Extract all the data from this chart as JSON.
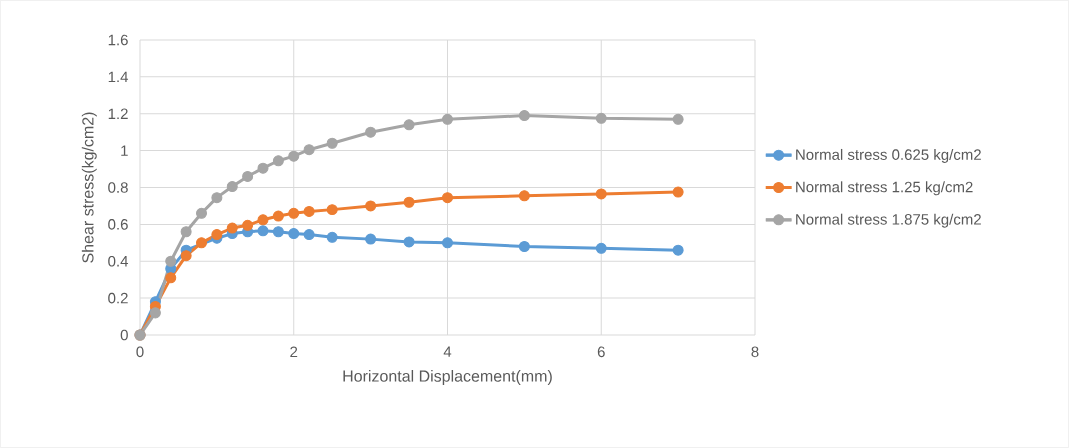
{
  "chart_data": {
    "type": "line",
    "xlabel": "Horizontal Displacement(mm)",
    "ylabel": "Shear stress(kg/cm2)",
    "x": [
      0,
      0.2,
      0.4,
      0.6,
      0.8,
      1.0,
      1.2,
      1.4,
      1.6,
      1.8,
      2.0,
      2.2,
      2.5,
      3,
      3.5,
      4,
      5,
      6,
      7
    ],
    "series": [
      {
        "name": "Normal stress 0.625 kg/cm2",
        "color": "#5b9bd5",
        "values": [
          0,
          0.18,
          0.36,
          0.46,
          null,
          0.525,
          0.55,
          0.56,
          0.565,
          0.56,
          0.55,
          0.545,
          0.53,
          0.52,
          0.505,
          0.5,
          0.48,
          0.47,
          0.46
        ]
      },
      {
        "name": "Normal stress 1.25 kg/cm2",
        "color": "#ed7d31",
        "values": [
          0,
          0.155,
          0.31,
          0.43,
          0.5,
          0.545,
          0.58,
          0.595,
          0.625,
          0.645,
          0.66,
          0.67,
          0.68,
          0.7,
          0.72,
          0.745,
          0.755,
          0.765,
          0.775
        ]
      },
      {
        "name": "Normal stress 1.875 kg/cm2",
        "color": "#a5a5a5",
        "values": [
          0,
          0.12,
          0.4,
          0.56,
          0.66,
          0.745,
          0.805,
          0.86,
          0.905,
          0.945,
          0.97,
          1.005,
          1.04,
          1.1,
          1.14,
          1.17,
          1.19,
          1.175,
          1.17
        ]
      }
    ],
    "xlim": [
      0,
      8
    ],
    "xticks": [
      0,
      2,
      4,
      6,
      8
    ],
    "ylim": [
      0,
      1.6
    ],
    "yticks": [
      0,
      0.2,
      0.4,
      0.6,
      0.8,
      1,
      1.2,
      1.4,
      1.6
    ],
    "grid": true,
    "legend": "right",
    "marker": "circle",
    "line_style": "solid"
  }
}
